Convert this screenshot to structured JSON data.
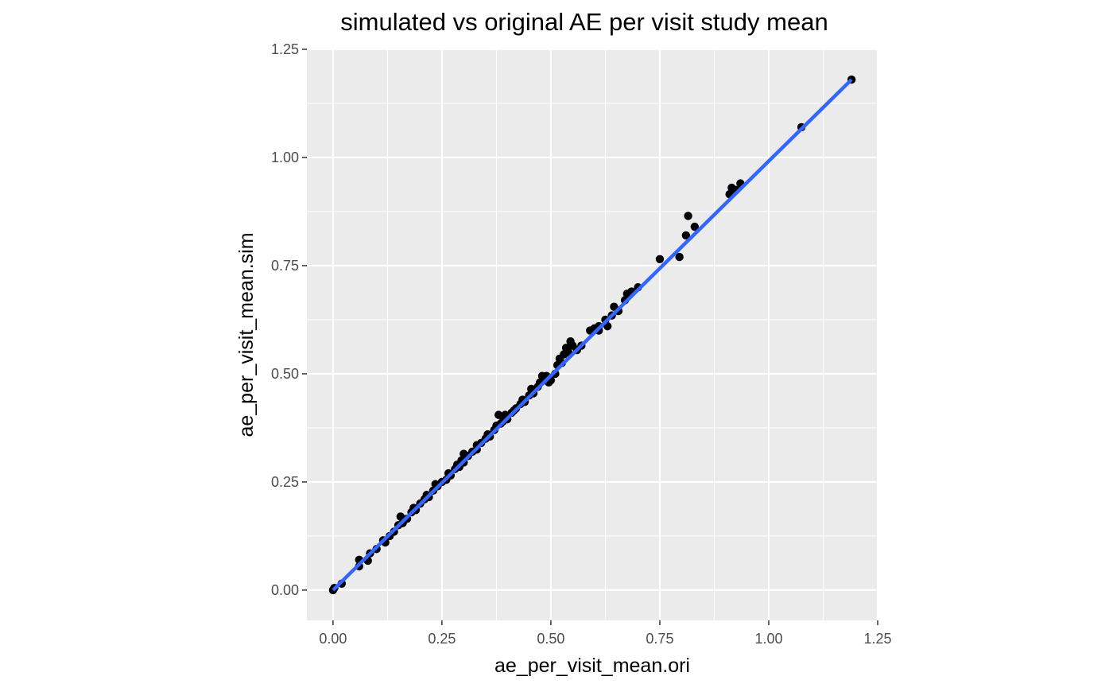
{
  "chart_data": {
    "type": "scatter",
    "title": "simulated vs original AE per visit study mean",
    "xlabel": "ae_per_visit_mean.ori",
    "ylabel": "ae_per_visit_mean.sim",
    "xlim": [
      -0.06,
      1.25
    ],
    "ylim": [
      -0.07,
      1.25
    ],
    "x_ticks": [
      "0.00",
      "0.25",
      "0.50",
      "0.75",
      "1.00",
      "1.25"
    ],
    "y_ticks": [
      "0.00",
      "0.25",
      "0.50",
      "0.75",
      "1.00",
      "1.25"
    ],
    "x_tick_values": [
      0,
      0.25,
      0.5,
      0.75,
      1.0,
      1.25
    ],
    "y_tick_values": [
      0,
      0.25,
      0.5,
      0.75,
      1.0,
      1.25
    ],
    "grid": true,
    "background": "#ebebeb",
    "point_color": "#000000",
    "line_color": "#3366ff",
    "ribbon_color": "#c8c8c8",
    "fit_line": {
      "method": "linear",
      "x": [
        0.0,
        1.19
      ],
      "y": [
        0.0,
        1.18
      ]
    },
    "points": [
      {
        "x": 0.0,
        "y": 0.0
      },
      {
        "x": 0.003,
        "y": 0.005
      },
      {
        "x": 0.02,
        "y": 0.015
      },
      {
        "x": 0.06,
        "y": 0.055
      },
      {
        "x": 0.06,
        "y": 0.07
      },
      {
        "x": 0.08,
        "y": 0.068
      },
      {
        "x": 0.085,
        "y": 0.085
      },
      {
        "x": 0.1,
        "y": 0.095
      },
      {
        "x": 0.115,
        "y": 0.115
      },
      {
        "x": 0.12,
        "y": 0.11
      },
      {
        "x": 0.13,
        "y": 0.125
      },
      {
        "x": 0.14,
        "y": 0.135
      },
      {
        "x": 0.15,
        "y": 0.15
      },
      {
        "x": 0.155,
        "y": 0.17
      },
      {
        "x": 0.16,
        "y": 0.155
      },
      {
        "x": 0.17,
        "y": 0.165
      },
      {
        "x": 0.18,
        "y": 0.18
      },
      {
        "x": 0.185,
        "y": 0.19
      },
      {
        "x": 0.19,
        "y": 0.185
      },
      {
        "x": 0.2,
        "y": 0.2
      },
      {
        "x": 0.21,
        "y": 0.21
      },
      {
        "x": 0.215,
        "y": 0.22
      },
      {
        "x": 0.22,
        "y": 0.215
      },
      {
        "x": 0.23,
        "y": 0.23
      },
      {
        "x": 0.235,
        "y": 0.245
      },
      {
        "x": 0.24,
        "y": 0.24
      },
      {
        "x": 0.25,
        "y": 0.25
      },
      {
        "x": 0.26,
        "y": 0.255
      },
      {
        "x": 0.265,
        "y": 0.27
      },
      {
        "x": 0.27,
        "y": 0.265
      },
      {
        "x": 0.28,
        "y": 0.28
      },
      {
        "x": 0.285,
        "y": 0.29
      },
      {
        "x": 0.29,
        "y": 0.285
      },
      {
        "x": 0.295,
        "y": 0.3
      },
      {
        "x": 0.3,
        "y": 0.295
      },
      {
        "x": 0.3,
        "y": 0.315
      },
      {
        "x": 0.31,
        "y": 0.31
      },
      {
        "x": 0.32,
        "y": 0.32
      },
      {
        "x": 0.33,
        "y": 0.325
      },
      {
        "x": 0.33,
        "y": 0.335
      },
      {
        "x": 0.34,
        "y": 0.34
      },
      {
        "x": 0.35,
        "y": 0.35
      },
      {
        "x": 0.355,
        "y": 0.36
      },
      {
        "x": 0.36,
        "y": 0.355
      },
      {
        "x": 0.37,
        "y": 0.37
      },
      {
        "x": 0.375,
        "y": 0.38
      },
      {
        "x": 0.38,
        "y": 0.405
      },
      {
        "x": 0.385,
        "y": 0.385
      },
      {
        "x": 0.39,
        "y": 0.39
      },
      {
        "x": 0.395,
        "y": 0.405
      },
      {
        "x": 0.4,
        "y": 0.395
      },
      {
        "x": 0.41,
        "y": 0.41
      },
      {
        "x": 0.415,
        "y": 0.415
      },
      {
        "x": 0.42,
        "y": 0.42
      },
      {
        "x": 0.43,
        "y": 0.43
      },
      {
        "x": 0.435,
        "y": 0.44
      },
      {
        "x": 0.44,
        "y": 0.435
      },
      {
        "x": 0.45,
        "y": 0.45
      },
      {
        "x": 0.455,
        "y": 0.465
      },
      {
        "x": 0.46,
        "y": 0.455
      },
      {
        "x": 0.47,
        "y": 0.47
      },
      {
        "x": 0.475,
        "y": 0.48
      },
      {
        "x": 0.48,
        "y": 0.495
      },
      {
        "x": 0.485,
        "y": 0.485
      },
      {
        "x": 0.49,
        "y": 0.495
      },
      {
        "x": 0.495,
        "y": 0.48
      },
      {
        "x": 0.5,
        "y": 0.485
      },
      {
        "x": 0.51,
        "y": 0.5
      },
      {
        "x": 0.515,
        "y": 0.52
      },
      {
        "x": 0.52,
        "y": 0.535
      },
      {
        "x": 0.525,
        "y": 0.525
      },
      {
        "x": 0.53,
        "y": 0.545
      },
      {
        "x": 0.535,
        "y": 0.56
      },
      {
        "x": 0.54,
        "y": 0.55
      },
      {
        "x": 0.545,
        "y": 0.575
      },
      {
        "x": 0.55,
        "y": 0.565
      },
      {
        "x": 0.56,
        "y": 0.555
      },
      {
        "x": 0.57,
        "y": 0.565
      },
      {
        "x": 0.59,
        "y": 0.6
      },
      {
        "x": 0.6,
        "y": 0.605
      },
      {
        "x": 0.61,
        "y": 0.61
      },
      {
        "x": 0.61,
        "y": 0.6
      },
      {
        "x": 0.625,
        "y": 0.625
      },
      {
        "x": 0.63,
        "y": 0.61
      },
      {
        "x": 0.64,
        "y": 0.635
      },
      {
        "x": 0.645,
        "y": 0.655
      },
      {
        "x": 0.655,
        "y": 0.645
      },
      {
        "x": 0.67,
        "y": 0.67
      },
      {
        "x": 0.675,
        "y": 0.685
      },
      {
        "x": 0.685,
        "y": 0.69
      },
      {
        "x": 0.7,
        "y": 0.7
      },
      {
        "x": 0.75,
        "y": 0.765
      },
      {
        "x": 0.795,
        "y": 0.77
      },
      {
        "x": 0.81,
        "y": 0.82
      },
      {
        "x": 0.815,
        "y": 0.865
      },
      {
        "x": 0.83,
        "y": 0.84
      },
      {
        "x": 0.91,
        "y": 0.915
      },
      {
        "x": 0.915,
        "y": 0.93
      },
      {
        "x": 0.925,
        "y": 0.925
      },
      {
        "x": 0.935,
        "y": 0.94
      },
      {
        "x": 1.075,
        "y": 1.07
      },
      {
        "x": 1.19,
        "y": 1.18
      }
    ]
  }
}
